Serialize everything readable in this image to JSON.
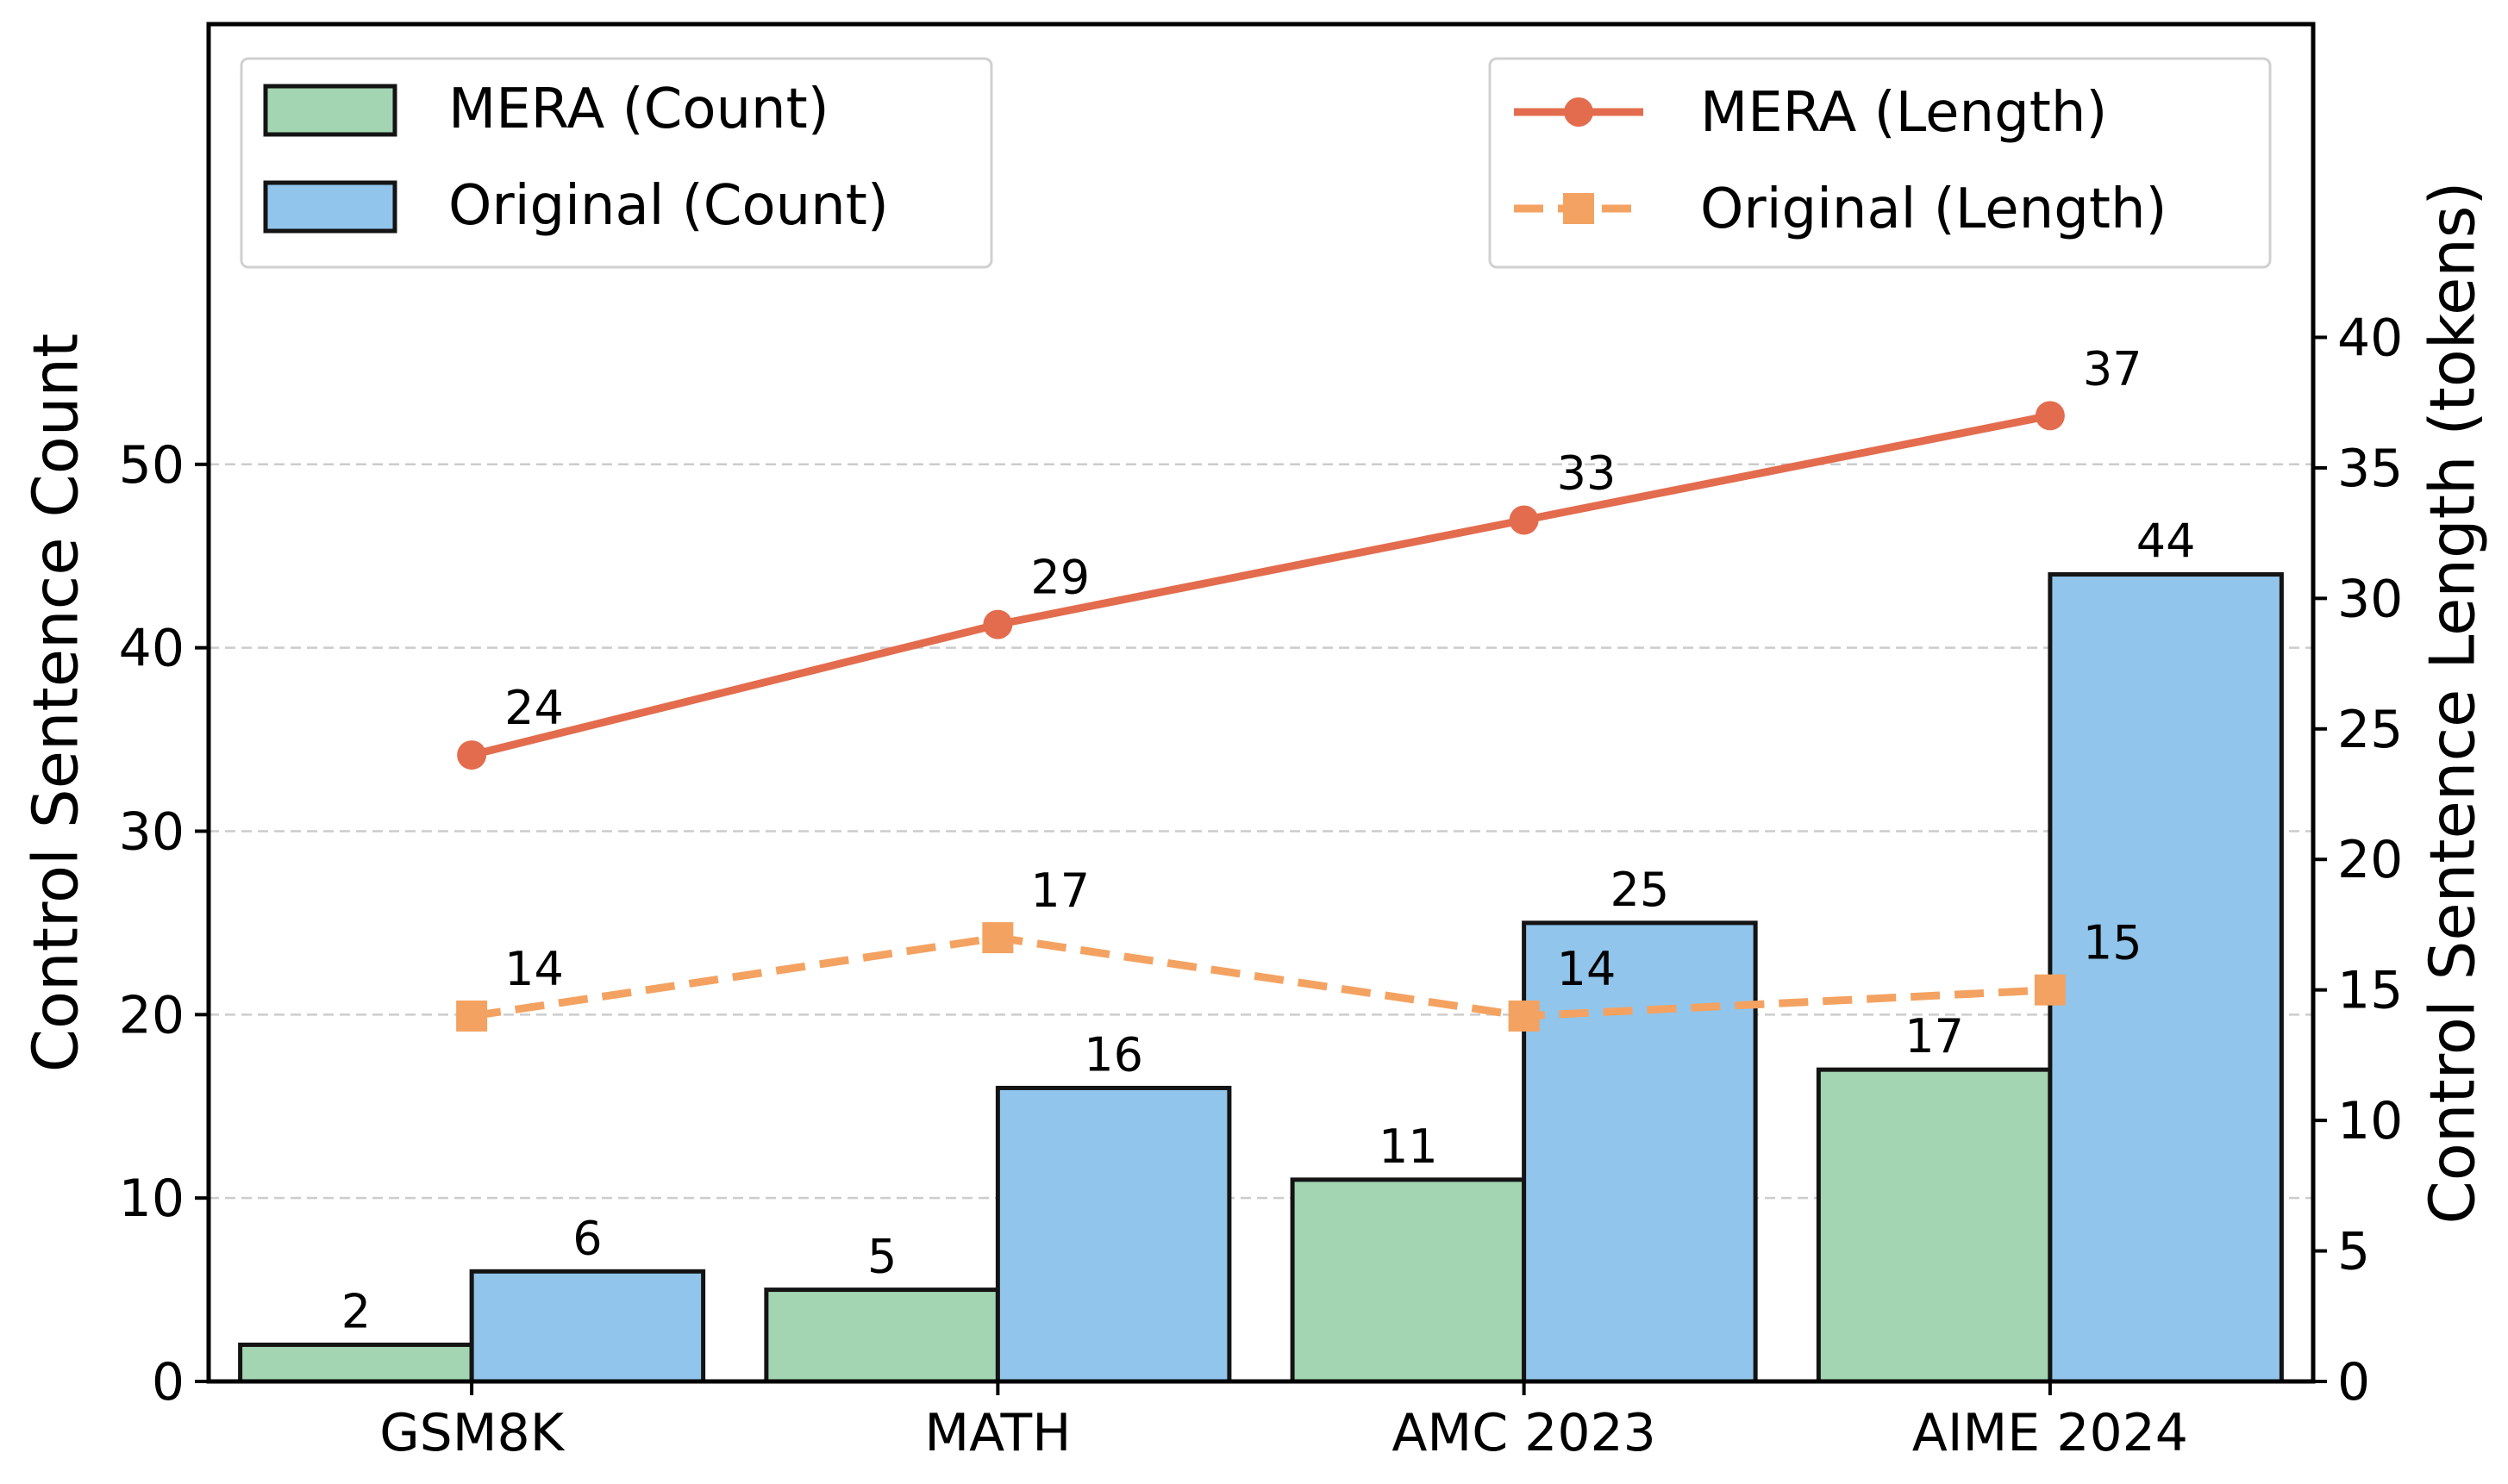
{
  "chart_data": {
    "type": "bar",
    "categories": [
      "GSM8K",
      "MATH",
      "AMC 2023",
      "AIME 2024"
    ],
    "bar_series": [
      {
        "name": "MERA (Count)",
        "values": [
          2,
          5,
          11,
          17
        ],
        "color": "#a3d5b3"
      },
      {
        "name": "Original (Count)",
        "values": [
          6,
          16,
          25,
          44
        ],
        "color": "#91c5eb"
      }
    ],
    "line_series": [
      {
        "name": "MERA (Length)",
        "values": [
          24,
          29,
          33,
          37
        ],
        "color": "#e36c4e",
        "marker": "circle",
        "style": "solid"
      },
      {
        "name": "Original (Length)",
        "values": [
          14,
          17,
          14,
          15
        ],
        "color": "#f4a261",
        "marker": "square",
        "style": "dashed"
      }
    ],
    "ylabel": "Control Sentence Count",
    "y2label": "Control Sentence Length (tokens)",
    "ylim": [
      0,
      74
    ],
    "y2lim": [
      0,
      52
    ],
    "yticks": [
      0,
      10,
      20,
      30,
      40,
      50
    ],
    "y2ticks": [
      0,
      5,
      10,
      15,
      20,
      25,
      30,
      35,
      40
    ],
    "grid": "horizontal-dashed",
    "legend_left_placement": "top-left",
    "legend_right_placement": "top-right"
  }
}
